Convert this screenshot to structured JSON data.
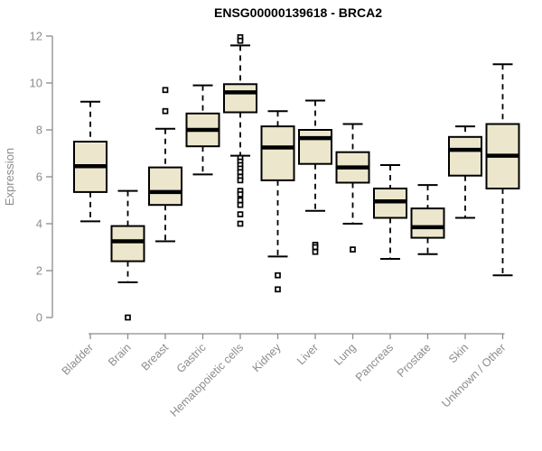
{
  "colors": {
    "background": "#ffffff",
    "box_fill": "#ece7cc",
    "box_border": "#000000",
    "median": "#000000",
    "whisker": "#000000",
    "outlier": "#000000",
    "axis": "#8c8c8c",
    "tick_label": "#8c8c8c",
    "title": "#000000"
  },
  "chart_data": {
    "type": "boxplot",
    "title": "ENSG00000139618 - BRCA2",
    "xlabel": "",
    "ylabel": "Expression",
    "ylim": [
      0,
      12
    ],
    "yticks": [
      0,
      2,
      4,
      6,
      8,
      10,
      12
    ],
    "grid": false,
    "legend": "none",
    "x_label_rotation_deg": 45,
    "categories": [
      "Bladder",
      "Brain",
      "Breast",
      "Gastric",
      "Hematopoietic cells",
      "Kidney",
      "Liver",
      "Lung",
      "Pancreas",
      "Prostate",
      "Skin",
      "Unknown / Other"
    ],
    "series": [
      {
        "category": "Bladder",
        "whisker_low": 4.1,
        "q1": 5.35,
        "median": 6.45,
        "q3": 7.5,
        "whisker_high": 9.2,
        "outliers": []
      },
      {
        "category": "Brain",
        "whisker_low": 1.5,
        "q1": 2.4,
        "median": 3.25,
        "q3": 3.9,
        "whisker_high": 5.4,
        "outliers": [
          0.0
        ]
      },
      {
        "category": "Breast",
        "whisker_low": 3.25,
        "q1": 4.8,
        "median": 5.35,
        "q3": 6.4,
        "whisker_high": 8.05,
        "outliers": [
          8.8,
          9.7
        ]
      },
      {
        "category": "Gastric",
        "whisker_low": 6.1,
        "q1": 7.3,
        "median": 8.0,
        "q3": 8.7,
        "whisker_high": 9.9,
        "outliers": []
      },
      {
        "category": "Hematopoietic cells",
        "whisker_low": 6.9,
        "q1": 8.75,
        "median": 9.6,
        "q3": 9.95,
        "whisker_high": 11.6,
        "outliers": [
          11.95,
          11.8,
          6.8,
          6.65,
          6.5,
          6.35,
          6.2,
          6.0,
          5.85,
          5.4,
          5.25,
          5.0,
          4.8,
          4.4,
          4.0
        ]
      },
      {
        "category": "Kidney",
        "whisker_low": 2.6,
        "q1": 5.85,
        "median": 7.25,
        "q3": 8.15,
        "whisker_high": 8.8,
        "outliers": [
          1.8,
          1.2
        ]
      },
      {
        "category": "Liver",
        "whisker_low": 4.55,
        "q1": 6.55,
        "median": 7.65,
        "q3": 8.0,
        "whisker_high": 9.25,
        "outliers": [
          3.1,
          3.0,
          2.8
        ]
      },
      {
        "category": "Lung",
        "whisker_low": 4.0,
        "q1": 5.75,
        "median": 6.4,
        "q3": 7.05,
        "whisker_high": 8.25,
        "outliers": [
          2.9
        ]
      },
      {
        "category": "Pancreas",
        "whisker_low": 2.5,
        "q1": 4.25,
        "median": 4.95,
        "q3": 5.5,
        "whisker_high": 6.5,
        "outliers": []
      },
      {
        "category": "Prostate",
        "whisker_low": 2.7,
        "q1": 3.4,
        "median": 3.85,
        "q3": 4.65,
        "whisker_high": 5.65,
        "outliers": []
      },
      {
        "category": "Skin",
        "whisker_low": 4.25,
        "q1": 6.05,
        "median": 7.15,
        "q3": 7.7,
        "whisker_high": 8.15,
        "outliers": []
      },
      {
        "category": "Unknown / Other",
        "whisker_low": 1.8,
        "q1": 5.5,
        "median": 6.9,
        "q3": 8.25,
        "whisker_high": 10.8,
        "outliers": []
      }
    ]
  }
}
